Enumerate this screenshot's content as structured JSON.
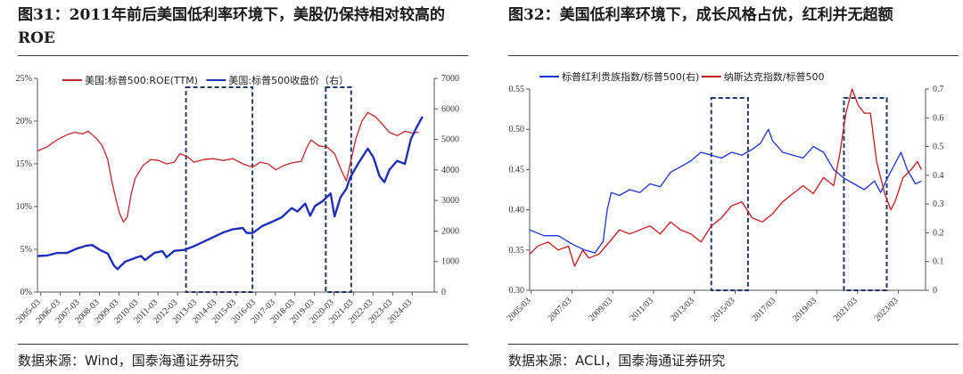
{
  "panel1": {
    "title": "图31：2011年前后美国低利率环境下，美股仍保持相对较高的ROE",
    "source": "数据来源：Wind，国泰海通证券研究",
    "chart_data": {
      "type": "line",
      "x_ticks": [
        "2005-03",
        "2006-03",
        "2007-03",
        "2008-03",
        "2009-03",
        "2010-03",
        "2011-03",
        "2012-03",
        "2013-03",
        "2014-03",
        "2015-03",
        "2016-03",
        "2017-03",
        "2018-03",
        "2019-03",
        "2020-03",
        "2021-03",
        "2022-03",
        "2023-03",
        "2024-03"
      ],
      "x_range": [
        2005.0,
        2025.3
      ],
      "y_left": {
        "range": [
          0,
          25
        ],
        "ticks": [
          "0%",
          "5%",
          "10%",
          "15%",
          "20%",
          "25%"
        ]
      },
      "y_right": {
        "range": [
          0,
          7000
        ],
        "ticks": [
          "0",
          "1000",
          "2000",
          "3000",
          "4000",
          "5000",
          "6000",
          "7000"
        ]
      },
      "series": [
        {
          "name": "美国:标普500:ROE(TTM)",
          "axis": "left",
          "color": "#c0262d",
          "points": [
            [
              2005.0,
              16.5
            ],
            [
              2005.5,
              17.0
            ],
            [
              2006.0,
              17.8
            ],
            [
              2006.5,
              18.4
            ],
            [
              2006.9,
              18.7
            ],
            [
              2007.3,
              18.5
            ],
            [
              2007.6,
              18.8
            ],
            [
              2008.0,
              18.0
            ],
            [
              2008.3,
              17.2
            ],
            [
              2008.6,
              15.5
            ],
            [
              2008.8,
              13.0
            ],
            [
              2009.0,
              11.0
            ],
            [
              2009.2,
              9.2
            ],
            [
              2009.4,
              8.2
            ],
            [
              2009.6,
              8.8
            ],
            [
              2009.8,
              11.5
            ],
            [
              2010.0,
              13.3
            ],
            [
              2010.4,
              14.8
            ],
            [
              2010.8,
              15.5
            ],
            [
              2011.2,
              15.4
            ],
            [
              2011.6,
              15.0
            ],
            [
              2012.0,
              15.2
            ],
            [
              2012.3,
              16.2
            ],
            [
              2012.7,
              15.8
            ],
            [
              2013.0,
              15.2
            ],
            [
              2013.5,
              15.5
            ],
            [
              2014.0,
              15.6
            ],
            [
              2014.5,
              15.4
            ],
            [
              2015.0,
              15.6
            ],
            [
              2015.5,
              15.0
            ],
            [
              2016.0,
              14.6
            ],
            [
              2016.4,
              15.2
            ],
            [
              2016.8,
              15.0
            ],
            [
              2017.2,
              14.3
            ],
            [
              2017.6,
              14.8
            ],
            [
              2018.0,
              15.1
            ],
            [
              2018.5,
              15.3
            ],
            [
              2018.8,
              17.0
            ],
            [
              2019.0,
              17.8
            ],
            [
              2019.4,
              17.1
            ],
            [
              2019.8,
              17.0
            ],
            [
              2020.2,
              16.2
            ],
            [
              2020.5,
              14.5
            ],
            [
              2020.8,
              13.0
            ],
            [
              2021.0,
              15.0
            ],
            [
              2021.3,
              18.0
            ],
            [
              2021.6,
              20.0
            ],
            [
              2021.9,
              21.0
            ],
            [
              2022.3,
              20.5
            ],
            [
              2022.7,
              19.5
            ],
            [
              2023.0,
              18.7
            ],
            [
              2023.4,
              18.3
            ],
            [
              2023.8,
              18.8
            ],
            [
              2024.2,
              18.6
            ],
            [
              2024.5,
              18.7
            ]
          ]
        },
        {
          "name": "美国:标普500收盘价（右）",
          "axis": "right",
          "color": "#1f2fb8",
          "points": [
            [
              2005.0,
              1180
            ],
            [
              2005.5,
              1200
            ],
            [
              2006.0,
              1280
            ],
            [
              2006.5,
              1280
            ],
            [
              2007.0,
              1420
            ],
            [
              2007.5,
              1520
            ],
            [
              2007.8,
              1540
            ],
            [
              2008.2,
              1380
            ],
            [
              2008.6,
              1260
            ],
            [
              2008.9,
              880
            ],
            [
              2009.1,
              750
            ],
            [
              2009.2,
              820
            ],
            [
              2009.5,
              1000
            ],
            [
              2010.0,
              1120
            ],
            [
              2010.3,
              1180
            ],
            [
              2010.5,
              1050
            ],
            [
              2011.0,
              1290
            ],
            [
              2011.4,
              1340
            ],
            [
              2011.6,
              1140
            ],
            [
              2012.0,
              1350
            ],
            [
              2012.5,
              1380
            ],
            [
              2013.0,
              1500
            ],
            [
              2013.5,
              1650
            ],
            [
              2014.0,
              1800
            ],
            [
              2014.5,
              1950
            ],
            [
              2015.0,
              2060
            ],
            [
              2015.5,
              2100
            ],
            [
              2015.7,
              1940
            ],
            [
              2016.0,
              1930
            ],
            [
              2016.5,
              2160
            ],
            [
              2017.0,
              2300
            ],
            [
              2017.5,
              2450
            ],
            [
              2018.0,
              2750
            ],
            [
              2018.3,
              2640
            ],
            [
              2018.7,
              2900
            ],
            [
              2018.95,
              2500
            ],
            [
              2019.2,
              2820
            ],
            [
              2019.6,
              2980
            ],
            [
              2020.0,
              3230
            ],
            [
              2020.2,
              2480
            ],
            [
              2020.5,
              3100
            ],
            [
              2020.8,
              3380
            ],
            [
              2021.0,
              3750
            ],
            [
              2021.4,
              4200
            ],
            [
              2021.9,
              4700
            ],
            [
              2022.2,
              4400
            ],
            [
              2022.5,
              3800
            ],
            [
              2022.75,
              3600
            ],
            [
              2023.0,
              4000
            ],
            [
              2023.4,
              4300
            ],
            [
              2023.8,
              4200
            ],
            [
              2024.1,
              5000
            ],
            [
              2024.4,
              5400
            ],
            [
              2024.7,
              5750
            ]
          ]
        }
      ],
      "highlight_boxes": [
        [
          2012.6,
          2016.0
        ],
        [
          2019.75,
          2021.05
        ]
      ],
      "legend": "top"
    }
  },
  "panel2": {
    "title": "图32：美国低利率环境下，成长风格占优，红利并无超额",
    "source": "数据来源：ACLI，国泰海通证券研究",
    "chart_data": {
      "type": "line",
      "x_ticks": [
        "2005/03",
        "2007/03",
        "2009/03",
        "2011/03",
        "2013/03",
        "2015/03",
        "2017/03",
        "2019/03",
        "2021/03",
        "2023/03"
      ],
      "x_range": [
        2005.1,
        2024.5
      ],
      "y_left": {
        "range": [
          0.3,
          0.55
        ],
        "ticks": [
          "0.30",
          "0.35",
          "0.40",
          "0.45",
          "0.50",
          "0.55"
        ]
      },
      "y_right": {
        "range": [
          0,
          0.7
        ],
        "ticks": [
          "0",
          "0.1",
          "0.2",
          "0.3",
          "0.4",
          "0.5",
          "0.6",
          "0.7"
        ]
      },
      "series": [
        {
          "name": "标普红利贵族指数/标普500(右)",
          "axis": "right",
          "color": "#1d31d8",
          "points": [
            [
              2005.1,
              0.21
            ],
            [
              2005.8,
              0.19
            ],
            [
              2006.5,
              0.19
            ],
            [
              2007.2,
              0.16
            ],
            [
              2007.8,
              0.14
            ],
            [
              2008.3,
              0.13
            ],
            [
              2008.7,
              0.17
            ],
            [
              2008.9,
              0.28
            ],
            [
              2009.1,
              0.34
            ],
            [
              2009.5,
              0.33
            ],
            [
              2010.0,
              0.35
            ],
            [
              2010.5,
              0.34
            ],
            [
              2011.0,
              0.37
            ],
            [
              2011.5,
              0.36
            ],
            [
              2012.0,
              0.41
            ],
            [
              2012.5,
              0.43
            ],
            [
              2013.0,
              0.45
            ],
            [
              2013.5,
              0.48
            ],
            [
              2014.0,
              0.47
            ],
            [
              2014.5,
              0.46
            ],
            [
              2015.0,
              0.48
            ],
            [
              2015.5,
              0.47
            ],
            [
              2016.0,
              0.49
            ],
            [
              2016.4,
              0.51
            ],
            [
              2016.8,
              0.56
            ],
            [
              2017.0,
              0.52
            ],
            [
              2017.5,
              0.48
            ],
            [
              2018.0,
              0.47
            ],
            [
              2018.5,
              0.46
            ],
            [
              2019.0,
              0.5
            ],
            [
              2019.5,
              0.48
            ],
            [
              2020.0,
              0.42
            ],
            [
              2020.5,
              0.39
            ],
            [
              2021.0,
              0.37
            ],
            [
              2021.5,
              0.35
            ],
            [
              2022.0,
              0.38
            ],
            [
              2022.3,
              0.34
            ],
            [
              2022.7,
              0.4
            ],
            [
              2023.0,
              0.44
            ],
            [
              2023.3,
              0.48
            ],
            [
              2023.6,
              0.42
            ],
            [
              2024.0,
              0.37
            ],
            [
              2024.3,
              0.38
            ]
          ]
        },
        {
          "name": "纳斯达克指数/标普500",
          "axis": "left",
          "color": "#c8161d",
          "points": [
            [
              2005.1,
              0.345
            ],
            [
              2005.5,
              0.355
            ],
            [
              2006.0,
              0.36
            ],
            [
              2006.5,
              0.35
            ],
            [
              2007.0,
              0.355
            ],
            [
              2007.3,
              0.33
            ],
            [
              2007.7,
              0.35
            ],
            [
              2008.0,
              0.34
            ],
            [
              2008.5,
              0.345
            ],
            [
              2009.0,
              0.36
            ],
            [
              2009.5,
              0.375
            ],
            [
              2010.0,
              0.37
            ],
            [
              2010.5,
              0.375
            ],
            [
              2011.0,
              0.38
            ],
            [
              2011.5,
              0.37
            ],
            [
              2012.0,
              0.385
            ],
            [
              2012.5,
              0.375
            ],
            [
              2013.0,
              0.37
            ],
            [
              2013.5,
              0.36
            ],
            [
              2014.0,
              0.38
            ],
            [
              2014.5,
              0.39
            ],
            [
              2015.0,
              0.405
            ],
            [
              2015.5,
              0.41
            ],
            [
              2016.0,
              0.39
            ],
            [
              2016.5,
              0.385
            ],
            [
              2017.0,
              0.395
            ],
            [
              2017.5,
              0.41
            ],
            [
              2018.0,
              0.42
            ],
            [
              2018.5,
              0.43
            ],
            [
              2019.0,
              0.42
            ],
            [
              2019.5,
              0.44
            ],
            [
              2020.0,
              0.43
            ],
            [
              2020.3,
              0.47
            ],
            [
              2020.6,
              0.52
            ],
            [
              2020.9,
              0.55
            ],
            [
              2021.2,
              0.53
            ],
            [
              2021.5,
              0.52
            ],
            [
              2021.8,
              0.52
            ],
            [
              2022.1,
              0.46
            ],
            [
              2022.5,
              0.42
            ],
            [
              2022.8,
              0.4
            ],
            [
              2023.0,
              0.41
            ],
            [
              2023.4,
              0.44
            ],
            [
              2023.8,
              0.45
            ],
            [
              2024.1,
              0.46
            ],
            [
              2024.3,
              0.45
            ]
          ]
        }
      ],
      "highlight_boxes": [
        [
          2014.0,
          2015.8
        ],
        [
          2020.5,
          2022.6
        ]
      ],
      "legend": "top"
    }
  }
}
